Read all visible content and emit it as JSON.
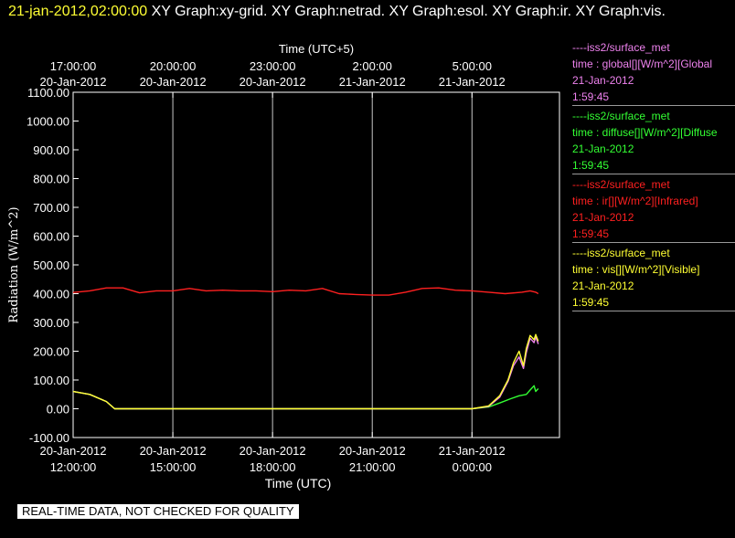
{
  "header": {
    "timestamp": "21-jan-2012,02:00:00",
    "graphs": "  XY Graph:xy-grid.  XY Graph:netrad.  XY Graph:esol.  XY Graph:ir.  XY Graph:vis."
  },
  "notice": "REAL-TIME DATA, NOT CHECKED FOR QUALITY",
  "legend": [
    {
      "source": "----iss2/surface_met",
      "field": "time : global[][W/m^2][Global",
      "date": "21-Jan-2012",
      "time": "1:59:45",
      "color": "#ee82ee"
    },
    {
      "source": "----iss2/surface_met",
      "field": "time : diffuse[][W/m^2][Diffuse",
      "date": "21-Jan-2012",
      "time": "1:59:45",
      "color": "#33ff33"
    },
    {
      "source": "----iss2/surface_met",
      "field": "time : ir[][W/m^2][Infrared]",
      "date": "21-Jan-2012",
      "time": "1:59:45",
      "color": "#ff2020"
    },
    {
      "source": "----iss2/surface_met",
      "field": "time : vis[][W/m^2][Visible]",
      "date": "21-Jan-2012",
      "time": "1:59:45",
      "color": "#ffff33"
    }
  ],
  "chart_data": {
    "type": "line",
    "xlabel": "Time (UTC)",
    "x2label": "Time (UTC+5)",
    "ylabel": "Radiation (W/m^2)",
    "ylim": [
      -100,
      1100
    ],
    "yticks": [
      "1100.00",
      "1000.00",
      "900.00",
      "800.00",
      "700.00",
      "600.00",
      "500.00",
      "400.00",
      "300.00",
      "200.00",
      "100.00",
      "0.00",
      "-100.00"
    ],
    "xticks_bottom": [
      {
        "date": "20-Jan-2012",
        "time": "12:00:00"
      },
      {
        "date": "20-Jan-2012",
        "time": "15:00:00"
      },
      {
        "date": "20-Jan-2012",
        "time": "18:00:00"
      },
      {
        "date": "20-Jan-2012",
        "time": "21:00:00"
      },
      {
        "date": "21-Jan-2012",
        "time": "0:00:00"
      }
    ],
    "xticks_top": [
      {
        "time": "17:00:00",
        "date": "20-Jan-2012"
      },
      {
        "time": "20:00:00",
        "date": "20-Jan-2012"
      },
      {
        "time": "23:00:00",
        "date": "20-Jan-2012"
      },
      {
        "time": "2:00:00",
        "date": "21-Jan-2012"
      },
      {
        "time": "5:00:00",
        "date": "21-Jan-2012"
      }
    ],
    "xlim": [
      "20-Jan-2012 12:00:00",
      "21-Jan-2012 02:00:00"
    ],
    "grid": "vertical",
    "series": [
      {
        "field": "global",
        "color": "#ee82ee",
        "points": [
          [
            "20-Jan-2012 12:00:00",
            60
          ],
          [
            "20-Jan-2012 12:30:00",
            50
          ],
          [
            "20-Jan-2012 13:00:00",
            25
          ],
          [
            "20-Jan-2012 13:15:00",
            0
          ],
          [
            "21-Jan-2012 00:00:00",
            0
          ],
          [
            "21-Jan-2012 00:30:00",
            8
          ],
          [
            "21-Jan-2012 00:50:00",
            40
          ],
          [
            "21-Jan-2012 01:05:00",
            95
          ],
          [
            "21-Jan-2012 01:15:00",
            150
          ],
          [
            "21-Jan-2012 01:25:00",
            180
          ],
          [
            "21-Jan-2012 01:33:00",
            140
          ],
          [
            "21-Jan-2012 01:38:00",
            195
          ],
          [
            "21-Jan-2012 01:45:00",
            245
          ],
          [
            "21-Jan-2012 01:52:00",
            230
          ],
          [
            "21-Jan-2012 01:55:00",
            250
          ],
          [
            "21-Jan-2012 01:59:45",
            225
          ]
        ]
      },
      {
        "field": "diffuse",
        "color": "#33ff33",
        "points": [
          [
            "20-Jan-2012 12:00:00",
            60
          ],
          [
            "20-Jan-2012 12:30:00",
            50
          ],
          [
            "20-Jan-2012 13:00:00",
            25
          ],
          [
            "20-Jan-2012 13:15:00",
            0
          ],
          [
            "21-Jan-2012 00:00:00",
            0
          ],
          [
            "21-Jan-2012 00:30:00",
            6
          ],
          [
            "21-Jan-2012 00:50:00",
            20
          ],
          [
            "21-Jan-2012 01:10:00",
            35
          ],
          [
            "21-Jan-2012 01:25:00",
            45
          ],
          [
            "21-Jan-2012 01:38:00",
            50
          ],
          [
            "21-Jan-2012 01:45:00",
            65
          ],
          [
            "21-Jan-2012 01:52:00",
            80
          ],
          [
            "21-Jan-2012 01:55:00",
            60
          ],
          [
            "21-Jan-2012 01:59:45",
            70
          ]
        ]
      },
      {
        "field": "ir",
        "color": "#ff2020",
        "points": [
          [
            "20-Jan-2012 12:00:00",
            404
          ],
          [
            "20-Jan-2012 12:30:00",
            410
          ],
          [
            "20-Jan-2012 13:00:00",
            420
          ],
          [
            "20-Jan-2012 13:30:00",
            420
          ],
          [
            "20-Jan-2012 14:00:00",
            403
          ],
          [
            "20-Jan-2012 14:30:00",
            410
          ],
          [
            "20-Jan-2012 15:00:00",
            410
          ],
          [
            "20-Jan-2012 15:30:00",
            418
          ],
          [
            "20-Jan-2012 16:00:00",
            410
          ],
          [
            "20-Jan-2012 16:30:00",
            412
          ],
          [
            "20-Jan-2012 17:00:00",
            410
          ],
          [
            "20-Jan-2012 17:30:00",
            410
          ],
          [
            "20-Jan-2012 18:00:00",
            407
          ],
          [
            "20-Jan-2012 18:30:00",
            412
          ],
          [
            "20-Jan-2012 19:00:00",
            410
          ],
          [
            "20-Jan-2012 19:30:00",
            418
          ],
          [
            "20-Jan-2012 20:00:00",
            400
          ],
          [
            "20-Jan-2012 20:30:00",
            397
          ],
          [
            "20-Jan-2012 21:00:00",
            395
          ],
          [
            "20-Jan-2012 21:30:00",
            395
          ],
          [
            "20-Jan-2012 22:00:00",
            405
          ],
          [
            "20-Jan-2012 22:30:00",
            418
          ],
          [
            "20-Jan-2012 23:00:00",
            420
          ],
          [
            "20-Jan-2012 23:30:00",
            412
          ],
          [
            "21-Jan-2012 00:00:00",
            410
          ],
          [
            "21-Jan-2012 00:30:00",
            405
          ],
          [
            "21-Jan-2012 01:00:00",
            400
          ],
          [
            "21-Jan-2012 01:30:00",
            405
          ],
          [
            "21-Jan-2012 01:45:00",
            410
          ],
          [
            "21-Jan-2012 01:55:00",
            405
          ],
          [
            "21-Jan-2012 01:59:45",
            400
          ]
        ]
      },
      {
        "field": "vis",
        "color": "#ffff33",
        "points": [
          [
            "20-Jan-2012 12:00:00",
            60
          ],
          [
            "20-Jan-2012 12:30:00",
            50
          ],
          [
            "20-Jan-2012 13:00:00",
            25
          ],
          [
            "20-Jan-2012 13:15:00",
            0
          ],
          [
            "21-Jan-2012 00:00:00",
            0
          ],
          [
            "21-Jan-2012 00:30:00",
            10
          ],
          [
            "21-Jan-2012 00:50:00",
            45
          ],
          [
            "21-Jan-2012 01:05:00",
            100
          ],
          [
            "21-Jan-2012 01:15:00",
            160
          ],
          [
            "21-Jan-2012 01:25:00",
            200
          ],
          [
            "21-Jan-2012 01:33:00",
            150
          ],
          [
            "21-Jan-2012 01:38:00",
            210
          ],
          [
            "21-Jan-2012 01:45:00",
            255
          ],
          [
            "21-Jan-2012 01:52:00",
            240
          ],
          [
            "21-Jan-2012 01:55:00",
            258
          ],
          [
            "21-Jan-2012 01:59:45",
            235
          ]
        ]
      }
    ]
  }
}
